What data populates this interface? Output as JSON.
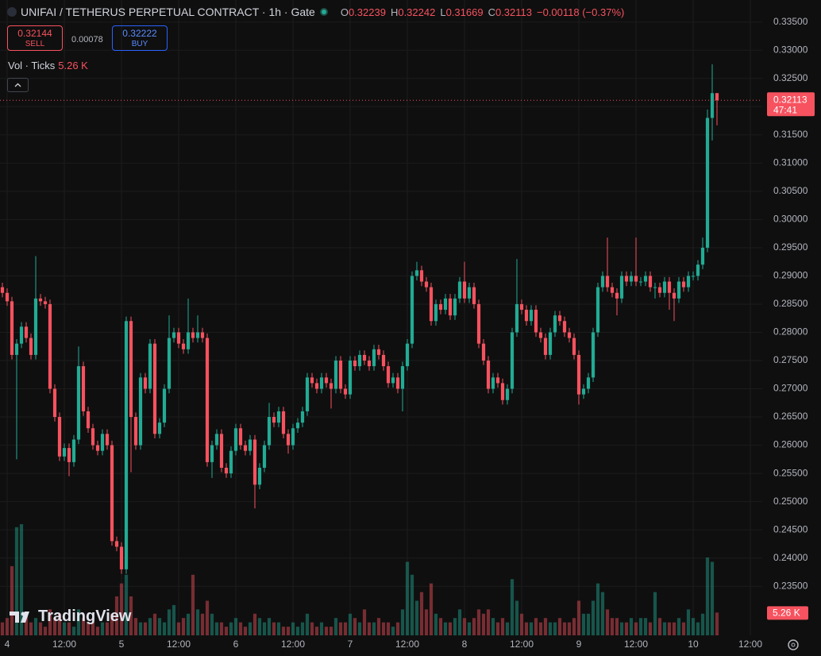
{
  "header": {
    "symbol_title": "UNIFAI / TETHERUS PERPETUAL CONTRACT · 1h · Gate",
    "ohlc_labels": [
      "O",
      "H",
      "L",
      "C"
    ],
    "change": "−0.00118 (−0.37%)"
  },
  "trade": {
    "sell_price": 0.32144,
    "sell_label": "SELL",
    "spread": 0.00078,
    "buy_price": 0.32222,
    "buy_label": "BUY"
  },
  "indicator": {
    "label": "Vol · Ticks"
  },
  "logo": "TradingView",
  "chart_data": {
    "type": "candlestick",
    "up_color": "#22ab94",
    "down_color": "#f7525f",
    "grid": true,
    "candles": [
      [
        0.288,
        0.2888,
        0.2862,
        0.287
      ],
      [
        0.287,
        0.2878,
        0.2847,
        0.2855
      ],
      [
        0.2855,
        0.2863,
        0.2752,
        0.276
      ],
      [
        0.276,
        0.2788,
        0.2575,
        0.278
      ],
      [
        0.278,
        0.2818,
        0.2772,
        0.281
      ],
      [
        0.281,
        0.2818,
        0.2782,
        0.279
      ],
      [
        0.279,
        0.2798,
        0.2752,
        0.276
      ],
      [
        0.276,
        0.2935,
        0.2752,
        0.286
      ],
      [
        0.286,
        0.2868,
        0.2847,
        0.2855
      ],
      [
        0.2855,
        0.2863,
        0.2842,
        0.285
      ],
      [
        0.285,
        0.2858,
        0.2692,
        0.27
      ],
      [
        0.27,
        0.2708,
        0.2642,
        0.265
      ],
      [
        0.265,
        0.2658,
        0.2572,
        0.258
      ],
      [
        0.258,
        0.2603,
        0.2572,
        0.2595
      ],
      [
        0.2595,
        0.2603,
        0.2545,
        0.257
      ],
      [
        0.257,
        0.2618,
        0.2562,
        0.261
      ],
      [
        0.261,
        0.2775,
        0.2602,
        0.274
      ],
      [
        0.274,
        0.2748,
        0.2652,
        0.266
      ],
      [
        0.266,
        0.2668,
        0.2622,
        0.263
      ],
      [
        0.263,
        0.2638,
        0.2592,
        0.26
      ],
      [
        0.26,
        0.2608,
        0.2582,
        0.259
      ],
      [
        0.259,
        0.2628,
        0.2582,
        0.262
      ],
      [
        0.262,
        0.2628,
        0.2592,
        0.26
      ],
      [
        0.26,
        0.2608,
        0.2422,
        0.243
      ],
      [
        0.243,
        0.2438,
        0.2412,
        0.242
      ],
      [
        0.242,
        0.2428,
        0.2372,
        0.238
      ],
      [
        0.238,
        0.2828,
        0.2372,
        0.282
      ],
      [
        0.282,
        0.2828,
        0.2552,
        0.265
      ],
      [
        0.265,
        0.2658,
        0.2592,
        0.26
      ],
      [
        0.26,
        0.2728,
        0.2592,
        0.272
      ],
      [
        0.272,
        0.2728,
        0.2692,
        0.27
      ],
      [
        0.27,
        0.2788,
        0.2692,
        0.278
      ],
      [
        0.278,
        0.2788,
        0.2612,
        0.262
      ],
      [
        0.262,
        0.2648,
        0.2612,
        0.264
      ],
      [
        0.264,
        0.2708,
        0.2632,
        0.27
      ],
      [
        0.27,
        0.283,
        0.2692,
        0.279
      ],
      [
        0.279,
        0.2808,
        0.2782,
        0.28
      ],
      [
        0.28,
        0.2808,
        0.2772,
        0.278
      ],
      [
        0.278,
        0.2788,
        0.2762,
        0.277
      ],
      [
        0.277,
        0.286,
        0.2762,
        0.28
      ],
      [
        0.28,
        0.2808,
        0.2782,
        0.279
      ],
      [
        0.279,
        0.283,
        0.2782,
        0.28
      ],
      [
        0.28,
        0.2808,
        0.2782,
        0.279
      ],
      [
        0.279,
        0.2798,
        0.2562,
        0.257
      ],
      [
        0.257,
        0.2608,
        0.2542,
        0.26
      ],
      [
        0.26,
        0.2628,
        0.2592,
        0.262
      ],
      [
        0.262,
        0.2628,
        0.2552,
        0.256
      ],
      [
        0.256,
        0.2568,
        0.2542,
        0.255
      ],
      [
        0.255,
        0.2598,
        0.2542,
        0.259
      ],
      [
        0.259,
        0.2638,
        0.2582,
        0.263
      ],
      [
        0.263,
        0.2638,
        0.2592,
        0.26
      ],
      [
        0.26,
        0.2608,
        0.2582,
        0.259
      ],
      [
        0.259,
        0.2618,
        0.2582,
        0.261
      ],
      [
        0.261,
        0.2618,
        0.2488,
        0.253
      ],
      [
        0.253,
        0.2568,
        0.2522,
        0.256
      ],
      [
        0.256,
        0.2608,
        0.2552,
        0.26
      ],
      [
        0.26,
        0.2675,
        0.2592,
        0.265
      ],
      [
        0.265,
        0.2658,
        0.2632,
        0.264
      ],
      [
        0.264,
        0.2668,
        0.2632,
        0.266
      ],
      [
        0.266,
        0.2668,
        0.2612,
        0.262
      ],
      [
        0.262,
        0.2628,
        0.2585,
        0.26
      ],
      [
        0.26,
        0.2638,
        0.2592,
        0.263
      ],
      [
        0.263,
        0.2648,
        0.2622,
        0.264
      ],
      [
        0.264,
        0.2668,
        0.2632,
        0.266
      ],
      [
        0.266,
        0.2728,
        0.2652,
        0.272
      ],
      [
        0.272,
        0.2728,
        0.2702,
        0.271
      ],
      [
        0.271,
        0.2718,
        0.2692,
        0.27
      ],
      [
        0.27,
        0.2728,
        0.2692,
        0.272
      ],
      [
        0.272,
        0.2728,
        0.2702,
        0.271
      ],
      [
        0.271,
        0.2718,
        0.2665,
        0.27
      ],
      [
        0.27,
        0.2758,
        0.2692,
        0.275
      ],
      [
        0.275,
        0.2758,
        0.2692,
        0.27
      ],
      [
        0.27,
        0.2708,
        0.2682,
        0.269
      ],
      [
        0.269,
        0.2758,
        0.2682,
        0.275
      ],
      [
        0.275,
        0.2758,
        0.2732,
        0.274
      ],
      [
        0.274,
        0.2768,
        0.2732,
        0.276
      ],
      [
        0.276,
        0.2768,
        0.2742,
        0.275
      ],
      [
        0.275,
        0.2758,
        0.2732,
        0.274
      ],
      [
        0.274,
        0.2778,
        0.2732,
        0.277
      ],
      [
        0.277,
        0.2778,
        0.2752,
        0.276
      ],
      [
        0.276,
        0.2768,
        0.2732,
        0.274
      ],
      [
        0.274,
        0.2748,
        0.2702,
        0.271
      ],
      [
        0.271,
        0.2728,
        0.2702,
        0.272
      ],
      [
        0.272,
        0.2728,
        0.2692,
        0.27
      ],
      [
        0.27,
        0.2748,
        0.266,
        0.274
      ],
      [
        0.274,
        0.2788,
        0.2732,
        0.278
      ],
      [
        0.278,
        0.2908,
        0.2772,
        0.29
      ],
      [
        0.29,
        0.2925,
        0.2892,
        0.291
      ],
      [
        0.291,
        0.2918,
        0.2882,
        0.289
      ],
      [
        0.289,
        0.2898,
        0.2872,
        0.288
      ],
      [
        0.288,
        0.2888,
        0.2812,
        0.282
      ],
      [
        0.282,
        0.2858,
        0.2812,
        0.285
      ],
      [
        0.285,
        0.2858,
        0.2832,
        0.284
      ],
      [
        0.284,
        0.2868,
        0.2832,
        0.286
      ],
      [
        0.286,
        0.2868,
        0.2822,
        0.283
      ],
      [
        0.283,
        0.2868,
        0.2822,
        0.286
      ],
      [
        0.286,
        0.2898,
        0.2852,
        0.289
      ],
      [
        0.289,
        0.2925,
        0.2852,
        0.286
      ],
      [
        0.286,
        0.2888,
        0.2852,
        0.288
      ],
      [
        0.288,
        0.2888,
        0.2842,
        0.285
      ],
      [
        0.285,
        0.2858,
        0.2772,
        0.278
      ],
      [
        0.278,
        0.2788,
        0.2742,
        0.275
      ],
      [
        0.275,
        0.2758,
        0.2692,
        0.27
      ],
      [
        0.27,
        0.2728,
        0.2692,
        0.272
      ],
      [
        0.272,
        0.2728,
        0.2702,
        0.271
      ],
      [
        0.271,
        0.2718,
        0.2672,
        0.268
      ],
      [
        0.268,
        0.2708,
        0.2672,
        0.27
      ],
      [
        0.27,
        0.2808,
        0.2692,
        0.28
      ],
      [
        0.28,
        0.293,
        0.2792,
        0.285
      ],
      [
        0.285,
        0.2858,
        0.2832,
        0.284
      ],
      [
        0.284,
        0.2848,
        0.2812,
        0.282
      ],
      [
        0.282,
        0.2848,
        0.2812,
        0.284
      ],
      [
        0.284,
        0.2848,
        0.2792,
        0.28
      ],
      [
        0.28,
        0.2808,
        0.2782,
        0.279
      ],
      [
        0.279,
        0.2798,
        0.2752,
        0.276
      ],
      [
        0.276,
        0.2808,
        0.2752,
        0.28
      ],
      [
        0.28,
        0.2838,
        0.2792,
        0.283
      ],
      [
        0.283,
        0.2838,
        0.2812,
        0.282
      ],
      [
        0.282,
        0.2828,
        0.2792,
        0.28
      ],
      [
        0.28,
        0.2808,
        0.2782,
        0.279
      ],
      [
        0.279,
        0.2798,
        0.2752,
        0.276
      ],
      [
        0.276,
        0.2768,
        0.2672,
        0.269
      ],
      [
        0.269,
        0.2708,
        0.2682,
        0.27
      ],
      [
        0.27,
        0.2728,
        0.2692,
        0.272
      ],
      [
        0.272,
        0.2808,
        0.2712,
        0.28
      ],
      [
        0.28,
        0.2888,
        0.2792,
        0.288
      ],
      [
        0.288,
        0.2908,
        0.2872,
        0.29
      ],
      [
        0.29,
        0.2968,
        0.2872,
        0.288
      ],
      [
        0.288,
        0.2888,
        0.2862,
        0.287
      ],
      [
        0.287,
        0.2878,
        0.283,
        0.286
      ],
      [
        0.286,
        0.2908,
        0.2852,
        0.29
      ],
      [
        0.29,
        0.2908,
        0.2882,
        0.289
      ],
      [
        0.289,
        0.2908,
        0.2882,
        0.29
      ],
      [
        0.29,
        0.2968,
        0.2882,
        0.289
      ],
      [
        0.289,
        0.2898,
        0.2882,
        0.289
      ],
      [
        0.289,
        0.2908,
        0.2882,
        0.29
      ],
      [
        0.29,
        0.2908,
        0.2872,
        0.288
      ],
      [
        0.288,
        0.2888,
        0.286,
        0.288
      ],
      [
        0.288,
        0.2888,
        0.2862,
        0.287
      ],
      [
        0.287,
        0.2898,
        0.2862,
        0.289
      ],
      [
        0.289,
        0.2898,
        0.284,
        0.287
      ],
      [
        0.287,
        0.2878,
        0.282,
        0.286
      ],
      [
        0.286,
        0.2898,
        0.2852,
        0.289
      ],
      [
        0.289,
        0.2898,
        0.2872,
        0.288
      ],
      [
        0.288,
        0.2908,
        0.2872,
        0.29
      ],
      [
        0.29,
        0.2908,
        0.2892,
        0.29
      ],
      [
        0.29,
        0.2928,
        0.2892,
        0.292
      ],
      [
        0.292,
        0.2968,
        0.2912,
        0.295
      ],
      [
        0.295,
        0.3195,
        0.2942,
        0.318
      ],
      [
        0.318,
        0.3275,
        0.314,
        0.32239
      ],
      [
        0.32239,
        0.32242,
        0.31669,
        0.32113
      ]
    ],
    "volumes": [
      3,
      4,
      16,
      25,
      25.7,
      5,
      3,
      4,
      3,
      2,
      6,
      4,
      5,
      3,
      3,
      2,
      6,
      4,
      3,
      3,
      2,
      3,
      3,
      5,
      9,
      12,
      14,
      9,
      4,
      3,
      3,
      4,
      5,
      4,
      3,
      6,
      7,
      3,
      4,
      5,
      14,
      6,
      5,
      8,
      5,
      3,
      3,
      2,
      3,
      4,
      3,
      2,
      3,
      5,
      4,
      3,
      4,
      3,
      3,
      2,
      2,
      3,
      2,
      3,
      5,
      3,
      2,
      3,
      2,
      2,
      4,
      3,
      3,
      5,
      4,
      3,
      6,
      3,
      3,
      4,
      3,
      3,
      2,
      3,
      6,
      17,
      14,
      8,
      10,
      6,
      12,
      5,
      4,
      3,
      3,
      4,
      6,
      4,
      3,
      4,
      6,
      5,
      6,
      4,
      3,
      4,
      3,
      13,
      8,
      5,
      3,
      3,
      4,
      3,
      4,
      3,
      3,
      4,
      3,
      3,
      4,
      8,
      5,
      5,
      8,
      12,
      10,
      6,
      4,
      4,
      3,
      3,
      4,
      3,
      4,
      4,
      3,
      10,
      4,
      3,
      3,
      3,
      4,
      3,
      6,
      4,
      3,
      5,
      18,
      17,
      5.26
    ],
    "last_volume_label": "5.26 K",
    "countdown": "47:41",
    "xlim": [
      -0.5,
      159.5
    ],
    "xticks": [
      {
        "value": 1,
        "label": "4"
      },
      {
        "value": 13,
        "label": "12:00"
      },
      {
        "value": 25,
        "label": "5"
      },
      {
        "value": 37,
        "label": "12:00"
      },
      {
        "value": 49,
        "label": "6"
      },
      {
        "value": 61,
        "label": "12:00"
      },
      {
        "value": 73,
        "label": "7"
      },
      {
        "value": 85,
        "label": "12:00"
      },
      {
        "value": 97,
        "label": "8"
      },
      {
        "value": 109,
        "label": "12:00"
      },
      {
        "value": 121,
        "label": "9"
      },
      {
        "value": 133,
        "label": "12:00"
      },
      {
        "value": 145,
        "label": "10"
      },
      {
        "value": 157,
        "label": "12:00"
      }
    ],
    "ylim": [
      0.2263,
      0.3389
    ],
    "yticks": [
      {
        "value": 0.235,
        "label": "0.23500"
      },
      {
        "value": 0.24,
        "label": "0.24000"
      },
      {
        "value": 0.245,
        "label": "0.24500"
      },
      {
        "value": 0.25,
        "label": "0.25000"
      },
      {
        "value": 0.255,
        "label": "0.25500"
      },
      {
        "value": 0.26,
        "label": "0.26000"
      },
      {
        "value": 0.265,
        "label": "0.26500"
      },
      {
        "value": 0.27,
        "label": "0.27000"
      },
      {
        "value": 0.275,
        "label": "0.27500"
      },
      {
        "value": 0.28,
        "label": "0.28000"
      },
      {
        "value": 0.285,
        "label": "0.28500"
      },
      {
        "value": 0.29,
        "label": "0.29000"
      },
      {
        "value": 0.295,
        "label": "0.29500"
      },
      {
        "value": 0.3,
        "label": "0.30000"
      },
      {
        "value": 0.305,
        "label": "0.30500"
      },
      {
        "value": 0.31,
        "label": "0.31000"
      },
      {
        "value": 0.315,
        "label": "0.31500"
      },
      {
        "value": 0.32,
        "label": "0.32000"
      },
      {
        "value": 0.325,
        "label": "0.32500"
      },
      {
        "value": 0.33,
        "label": "0.33000"
      },
      {
        "value": 0.335,
        "label": "0.33500"
      }
    ]
  }
}
